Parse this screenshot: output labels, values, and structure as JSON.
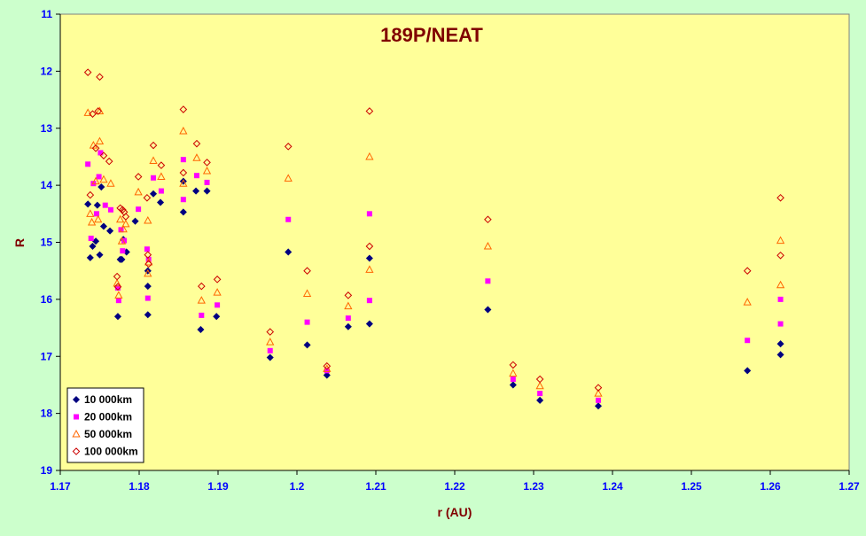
{
  "chart_data": {
    "type": "scatter",
    "title": "189P/NEAT",
    "xlabel": "r (AU)",
    "ylabel": "R",
    "xlim": [
      1.17,
      1.27
    ],
    "ylim": [
      11,
      19
    ],
    "y_inverted": true,
    "x_ticks": [
      "1.17",
      "1.18",
      "1.19",
      "1.2",
      "1.21",
      "1.22",
      "1.23",
      "1.24",
      "1.25",
      "1.26",
      "1.27"
    ],
    "y_ticks": [
      "11",
      "12",
      "13",
      "14",
      "15",
      "16",
      "17",
      "18",
      "19"
    ],
    "legend_position": "bottom-left",
    "colors": {
      "page_background": "#ccffcc",
      "plot_background": "#ffff99",
      "title": "#800000",
      "axis_label": "#800000",
      "tick_label": "#0000ff",
      "axis_line": "#000000"
    },
    "series": [
      {
        "name": "10 000km",
        "marker": "diamond",
        "color": "#000080",
        "fill": "#000080",
        "points": [
          [
            1.1735,
            14.33
          ],
          [
            1.1738,
            15.27
          ],
          [
            1.1741,
            15.07
          ],
          [
            1.1745,
            14.98
          ],
          [
            1.1747,
            14.35
          ],
          [
            1.175,
            15.22
          ],
          [
            1.1752,
            14.03
          ],
          [
            1.1755,
            14.72
          ],
          [
            1.1763,
            14.8
          ],
          [
            1.1773,
            16.3
          ],
          [
            1.1776,
            15.3
          ],
          [
            1.1778,
            15.3
          ],
          [
            1.178,
            14.95
          ],
          [
            1.1784,
            15.17
          ],
          [
            1.1795,
            14.63
          ],
          [
            1.1811,
            15.77
          ],
          [
            1.1811,
            16.27
          ],
          [
            1.1811,
            15.5
          ],
          [
            1.1818,
            14.15
          ],
          [
            1.1827,
            14.3
          ],
          [
            1.1856,
            14.47
          ],
          [
            1.1856,
            13.93
          ],
          [
            1.1872,
            14.1
          ],
          [
            1.1878,
            16.53
          ],
          [
            1.1886,
            14.1
          ],
          [
            1.1898,
            16.3
          ],
          [
            1.1966,
            17.02
          ],
          [
            1.1989,
            15.17
          ],
          [
            1.2013,
            16.8
          ],
          [
            1.2038,
            17.33
          ],
          [
            1.2065,
            16.48
          ],
          [
            1.2092,
            16.43
          ],
          [
            1.2092,
            15.28
          ],
          [
            1.2242,
            16.18
          ],
          [
            1.2274,
            17.5
          ],
          [
            1.2308,
            17.77
          ],
          [
            1.2382,
            17.87
          ],
          [
            1.2571,
            17.25
          ],
          [
            1.2613,
            16.78
          ],
          [
            1.2613,
            16.97
          ]
        ]
      },
      {
        "name": "20 000km",
        "marker": "square",
        "color": "#ff00ff",
        "fill": "#ff00ff",
        "points": [
          [
            1.1735,
            13.63
          ],
          [
            1.1739,
            14.93
          ],
          [
            1.1742,
            13.97
          ],
          [
            1.1746,
            14.5
          ],
          [
            1.1749,
            13.85
          ],
          [
            1.1751,
            13.43
          ],
          [
            1.1757,
            14.35
          ],
          [
            1.1764,
            14.43
          ],
          [
            1.1773,
            15.8
          ],
          [
            1.1774,
            16.02
          ],
          [
            1.1777,
            14.78
          ],
          [
            1.1779,
            15.15
          ],
          [
            1.1781,
            14.97
          ],
          [
            1.1799,
            14.42
          ],
          [
            1.181,
            15.12
          ],
          [
            1.1811,
            15.98
          ],
          [
            1.1812,
            15.3
          ],
          [
            1.1818,
            13.87
          ],
          [
            1.1828,
            14.1
          ],
          [
            1.1856,
            14.25
          ],
          [
            1.1856,
            13.55
          ],
          [
            1.1873,
            13.83
          ],
          [
            1.1879,
            16.28
          ],
          [
            1.1886,
            13.95
          ],
          [
            1.1899,
            16.1
          ],
          [
            1.1966,
            16.9
          ],
          [
            1.1989,
            14.6
          ],
          [
            1.2013,
            16.4
          ],
          [
            1.2038,
            17.25
          ],
          [
            1.2065,
            16.33
          ],
          [
            1.2092,
            16.02
          ],
          [
            1.2092,
            14.5
          ],
          [
            1.2242,
            15.68
          ],
          [
            1.2274,
            17.4
          ],
          [
            1.2308,
            17.65
          ],
          [
            1.2382,
            17.77
          ],
          [
            1.2571,
            16.72
          ],
          [
            1.2613,
            16.0
          ],
          [
            1.2613,
            16.43
          ]
        ]
      },
      {
        "name": "50 000km",
        "marker": "triangle",
        "color": "#ff6600",
        "fill": "none",
        "points": [
          [
            1.1735,
            12.73
          ],
          [
            1.1738,
            14.5
          ],
          [
            1.174,
            14.65
          ],
          [
            1.1742,
            13.3
          ],
          [
            1.1745,
            13.93
          ],
          [
            1.1748,
            14.6
          ],
          [
            1.175,
            13.23
          ],
          [
            1.175,
            12.7
          ],
          [
            1.1755,
            13.9
          ],
          [
            1.1764,
            13.97
          ],
          [
            1.1772,
            15.72
          ],
          [
            1.1774,
            15.93
          ],
          [
            1.1776,
            14.6
          ],
          [
            1.1778,
            14.98
          ],
          [
            1.178,
            14.77
          ],
          [
            1.1783,
            14.68
          ],
          [
            1.1799,
            14.12
          ],
          [
            1.1811,
            14.62
          ],
          [
            1.1811,
            15.55
          ],
          [
            1.1812,
            15.35
          ],
          [
            1.1818,
            13.57
          ],
          [
            1.1828,
            13.85
          ],
          [
            1.1856,
            13.05
          ],
          [
            1.1856,
            13.97
          ],
          [
            1.1873,
            13.52
          ],
          [
            1.1879,
            16.02
          ],
          [
            1.1886,
            13.75
          ],
          [
            1.1899,
            15.88
          ],
          [
            1.1966,
            16.75
          ],
          [
            1.1989,
            13.88
          ],
          [
            1.2013,
            15.9
          ],
          [
            1.2038,
            17.22
          ],
          [
            1.2065,
            16.12
          ],
          [
            1.2092,
            15.48
          ],
          [
            1.2092,
            13.5
          ],
          [
            1.2242,
            15.07
          ],
          [
            1.2274,
            17.3
          ],
          [
            1.2308,
            17.52
          ],
          [
            1.2382,
            17.65
          ],
          [
            1.2571,
            16.05
          ],
          [
            1.2613,
            14.97
          ],
          [
            1.2613,
            15.75
          ]
        ]
      },
      {
        "name": "100 000km",
        "marker": "diamond-open",
        "color": "#cc0000",
        "fill": "none",
        "points": [
          [
            1.1735,
            12.02
          ],
          [
            1.1738,
            14.17
          ],
          [
            1.1741,
            12.75
          ],
          [
            1.1745,
            13.35
          ],
          [
            1.1748,
            12.7
          ],
          [
            1.175,
            12.1
          ],
          [
            1.1755,
            13.48
          ],
          [
            1.1762,
            13.58
          ],
          [
            1.1772,
            15.6
          ],
          [
            1.1773,
            15.78
          ],
          [
            1.1776,
            14.4
          ],
          [
            1.1779,
            14.43
          ],
          [
            1.1781,
            14.47
          ],
          [
            1.1783,
            14.55
          ],
          [
            1.1799,
            13.85
          ],
          [
            1.181,
            14.22
          ],
          [
            1.1811,
            15.22
          ],
          [
            1.1812,
            15.38
          ],
          [
            1.1818,
            13.3
          ],
          [
            1.1828,
            13.65
          ],
          [
            1.1856,
            12.67
          ],
          [
            1.1856,
            13.78
          ],
          [
            1.1873,
            13.27
          ],
          [
            1.1879,
            15.77
          ],
          [
            1.1886,
            13.6
          ],
          [
            1.1899,
            15.65
          ],
          [
            1.1966,
            16.57
          ],
          [
            1.1989,
            13.32
          ],
          [
            1.2013,
            15.5
          ],
          [
            1.2038,
            17.17
          ],
          [
            1.2065,
            15.93
          ],
          [
            1.2092,
            15.07
          ],
          [
            1.2092,
            12.7
          ],
          [
            1.2242,
            14.6
          ],
          [
            1.2274,
            17.15
          ],
          [
            1.2308,
            17.4
          ],
          [
            1.2382,
            17.55
          ],
          [
            1.2571,
            15.5
          ],
          [
            1.2613,
            14.22
          ],
          [
            1.2613,
            15.23
          ]
        ]
      }
    ]
  }
}
